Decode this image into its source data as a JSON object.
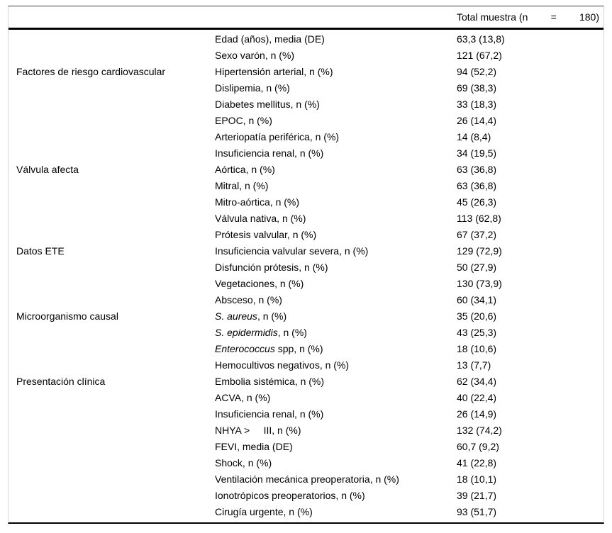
{
  "table": {
    "header": {
      "col1": "",
      "col2": "",
      "total_left": "Total muestra (n",
      "total_mid": "=",
      "total_right": "180)",
      "total_full": "Total muestra (n = 180)"
    },
    "rows": [
      {
        "category": "",
        "em": "",
        "label": "Edad (años), media (DE)",
        "value": "63,3 (13,8)"
      },
      {
        "category": "",
        "em": "",
        "label": "Sexo varón, n (%)",
        "value": "121 (67,2)"
      },
      {
        "category": "Factores de riesgo cardiovascular",
        "em": "",
        "label": "Hipertensión arterial, n (%)",
        "value": "94 (52,2)"
      },
      {
        "category": "",
        "em": "",
        "label": "Dislipemia, n (%)",
        "value": "69 (38,3)"
      },
      {
        "category": "",
        "em": "",
        "label": "Diabetes mellitus, n (%)",
        "value": "33 (18,3)"
      },
      {
        "category": "",
        "em": "",
        "label": "EPOC, n (%)",
        "value": "26 (14,4)"
      },
      {
        "category": "",
        "em": "",
        "label": "Arteriopatía periférica, n (%)",
        "value": "14 (8,4)"
      },
      {
        "category": "",
        "em": "",
        "label": "Insuficiencia renal, n (%)",
        "value": "34 (19,5)"
      },
      {
        "category": "Válvula afecta",
        "em": "",
        "label": "Aórtica, n (%)",
        "value": "63 (36,8)"
      },
      {
        "category": "",
        "em": "",
        "label": "Mitral, n (%)",
        "value": "63 (36,8)"
      },
      {
        "category": "",
        "em": "",
        "label": "Mitro-aórtica, n (%)",
        "value": "45 (26,3)"
      },
      {
        "category": "",
        "em": "",
        "label": "Válvula nativa, n (%)",
        "value": "113 (62,8)"
      },
      {
        "category": "",
        "em": "",
        "label": "Prótesis valvular, n (%)",
        "value": "67 (37,2)"
      },
      {
        "category": "Datos ETE",
        "em": "",
        "label": "Insuficiencia valvular severa, n (%)",
        "value": "129 (72,9)"
      },
      {
        "category": "",
        "em": "",
        "label": "Disfunción prótesis, n (%)",
        "value": "50 (27,9)"
      },
      {
        "category": "",
        "em": "",
        "label": "Vegetaciones, n (%)",
        "value": "130 (73,9)"
      },
      {
        "category": "",
        "em": "",
        "label": "Absceso, n (%)",
        "value": "60 (34,1)"
      },
      {
        "category": "Microorganismo causal",
        "em": "S. aureus",
        "label": ", n (%)",
        "value": "35 (20,6)"
      },
      {
        "category": "",
        "em": "S. epidermidis",
        "label": ", n (%)",
        "value": "43 (25,3)"
      },
      {
        "category": "",
        "em": "Enterococcus",
        "label": " spp, n (%)",
        "value": "18 (10,6)"
      },
      {
        "category": "",
        "em": "",
        "label": "Hemocultivos negativos, n (%)",
        "value": "13 (7,7)"
      },
      {
        "category": "Presentación clínica",
        "em": "",
        "label": "Embolia sistémica, n (%)",
        "value": "62 (34,4)"
      },
      {
        "category": "",
        "em": "",
        "label": "ACVA, n (%)",
        "value": "40 (22,4)"
      },
      {
        "category": "",
        "em": "",
        "label": "Insuficiencia renal, n (%)",
        "value": "26 (14,9)"
      },
      {
        "category": "",
        "em": "",
        "label": "NHYA >     III, n (%)",
        "value": "132 (74,2)"
      },
      {
        "category": "",
        "em": "",
        "label": "FEVI, media (DE)",
        "value": "60,7 (9,2)"
      },
      {
        "category": "",
        "em": "",
        "label": "Shock, n (%)",
        "value": "41 (22,8)"
      },
      {
        "category": "",
        "em": "",
        "label": "Ventilación mecánica preoperatoria, n (%)",
        "value": "18 (10,1)"
      },
      {
        "category": "",
        "em": "",
        "label": "Ionotrópicos preoperatorios, n (%)",
        "value": "39 (21,7)"
      },
      {
        "category": "",
        "em": "",
        "label": "Cirugía urgente, n (%)",
        "value": "93 (51,7)"
      }
    ]
  }
}
